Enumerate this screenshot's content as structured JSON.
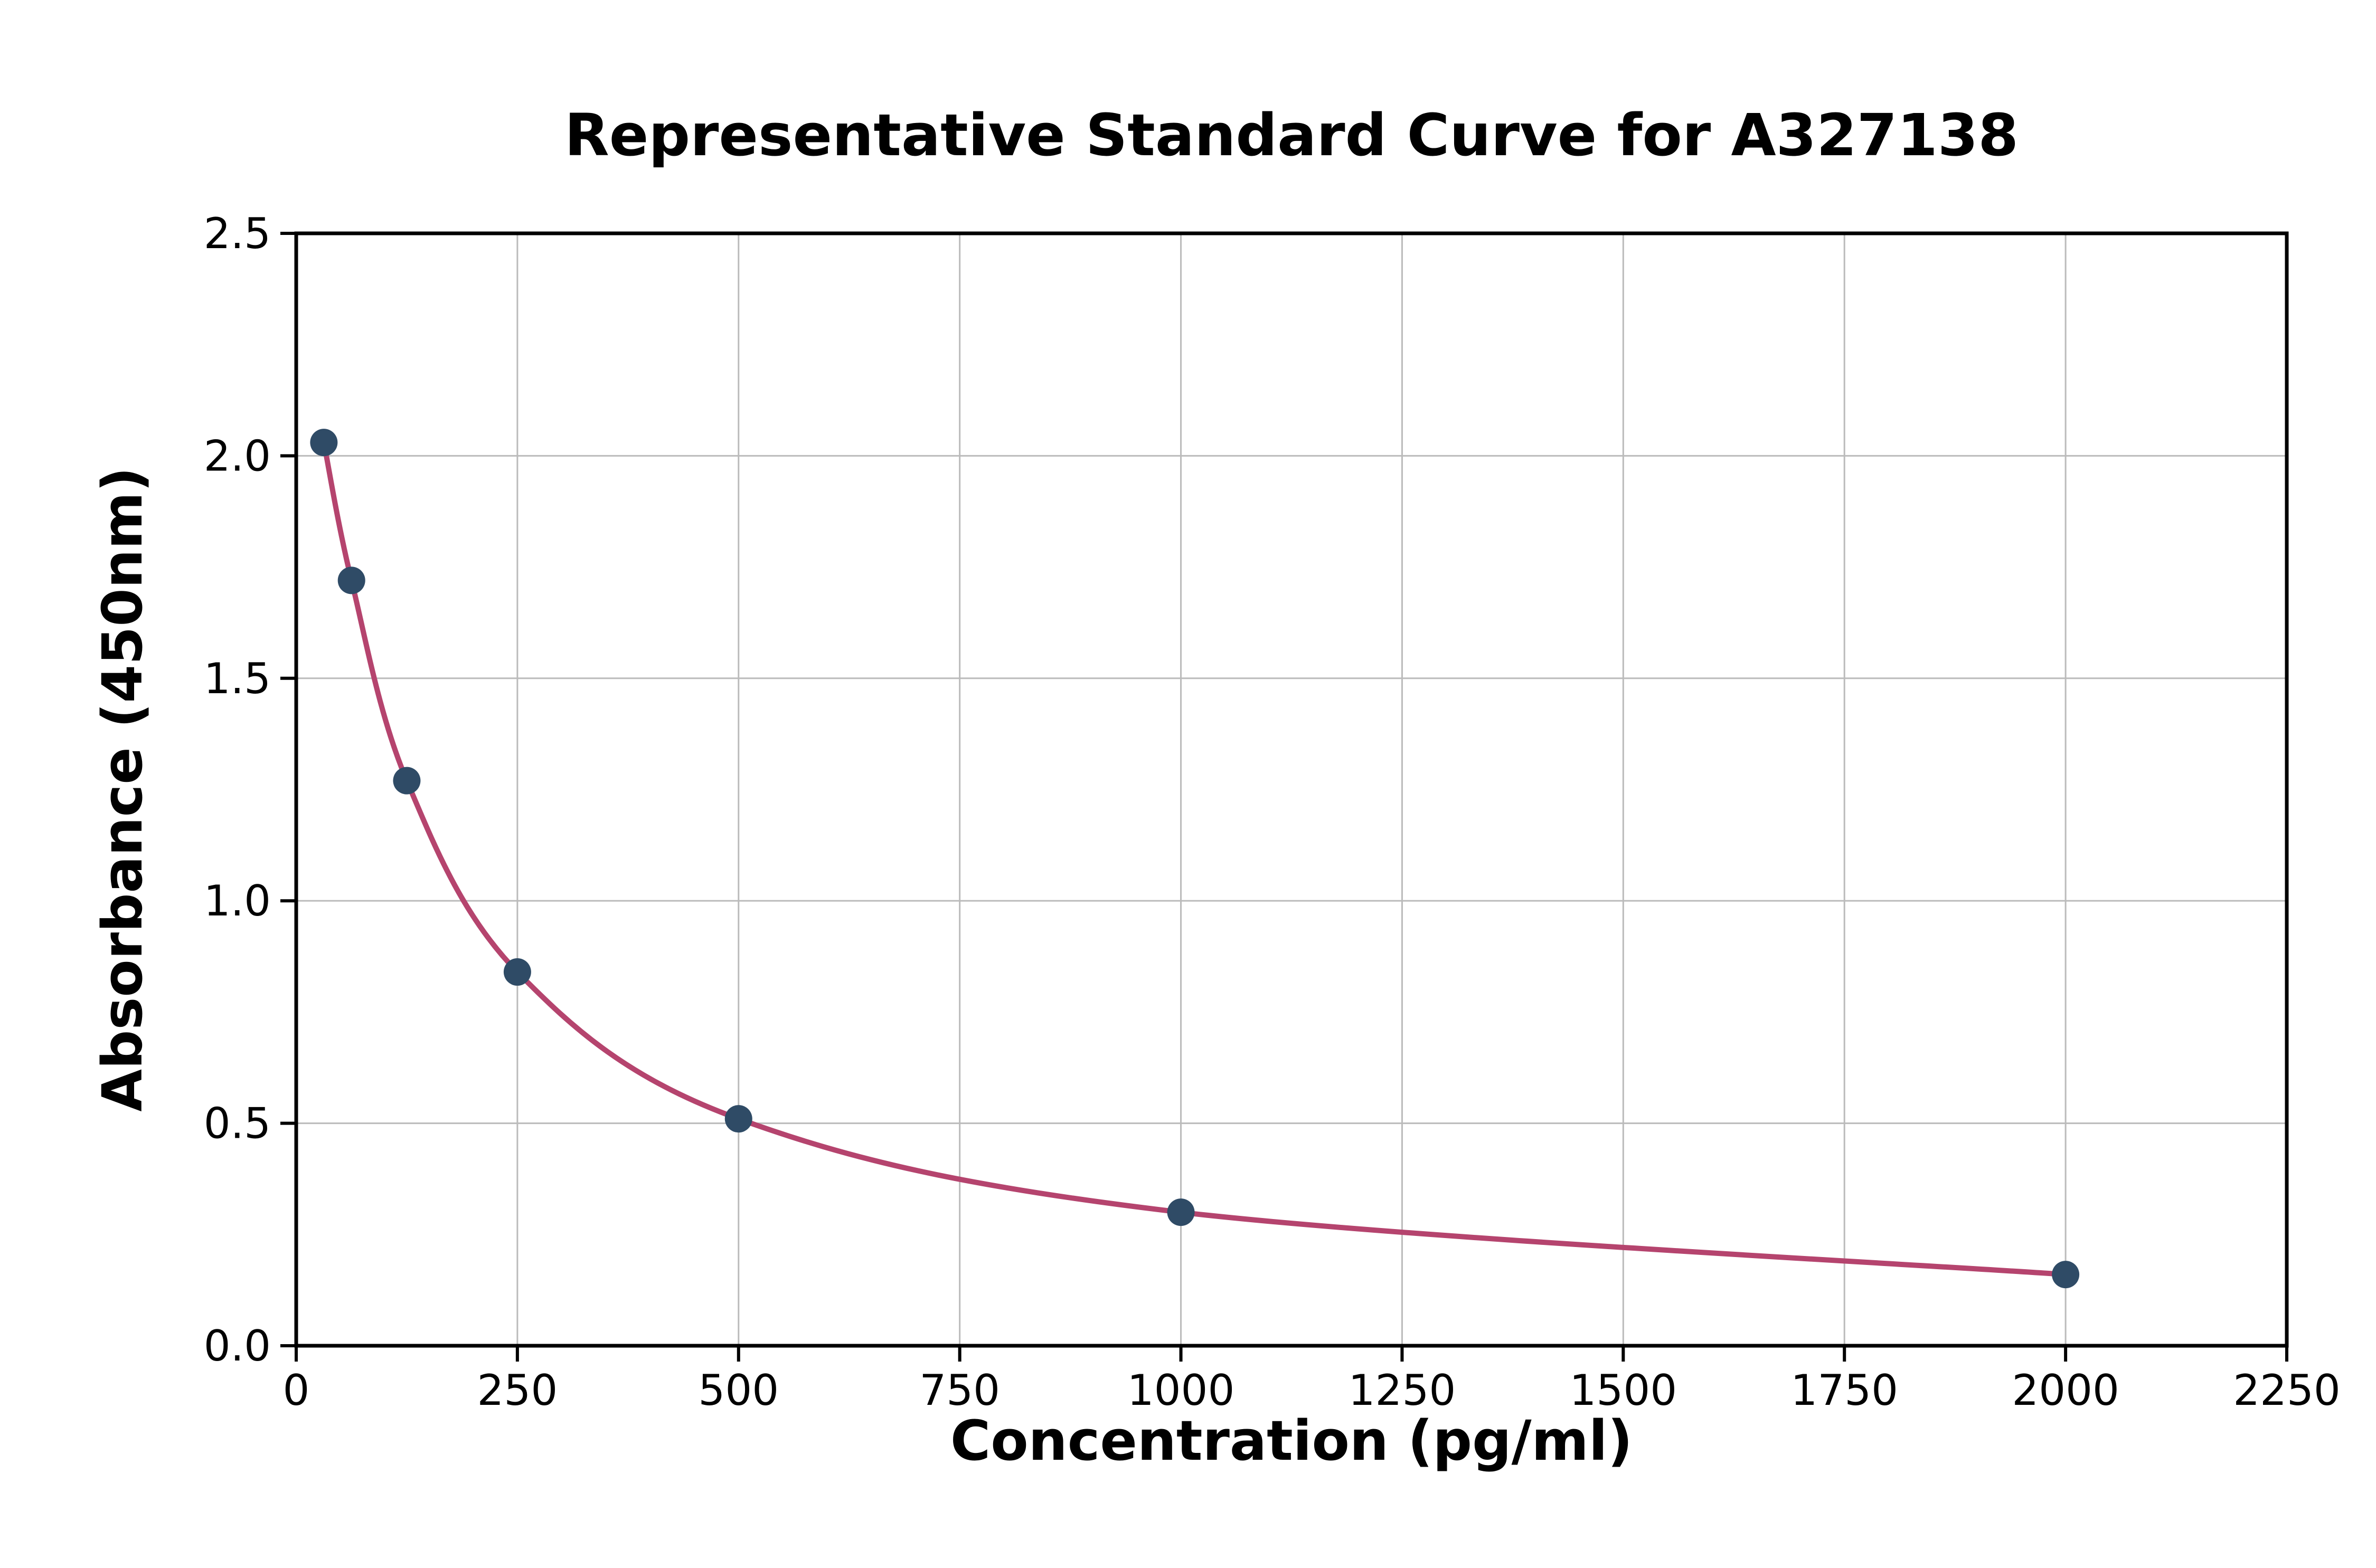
{
  "page": {
    "background": "#ffffff"
  },
  "chart_data": {
    "type": "scatter",
    "title": "Representative Standard Curve for A327138",
    "xlabel": "Concentration (pg/ml)",
    "ylabel": "Absorbance (450nm)",
    "xlim": [
      0,
      2250
    ],
    "ylim": [
      0,
      2.5
    ],
    "xtick_values": [
      0,
      250,
      500,
      750,
      1000,
      1250,
      1500,
      1750,
      2000,
      2250
    ],
    "xtick_labels": [
      "0",
      "250",
      "500",
      "750",
      "1000",
      "1250",
      "1500",
      "1750",
      "2000",
      "2250"
    ],
    "ytick_values": [
      0,
      0.5,
      1.0,
      1.5,
      2.0,
      2.5
    ],
    "ytick_labels": [
      "0.0",
      "0.5",
      "1.0",
      "1.5",
      "2.0",
      "2.5"
    ],
    "grid": true,
    "legend": "none",
    "series": [
      {
        "name": "standards",
        "type": "scatter",
        "x": [
          31.25,
          62.5,
          125,
          250,
          500,
          1000,
          2000
        ],
        "y": [
          2.03,
          1.72,
          1.27,
          0.84,
          0.51,
          0.3,
          0.16
        ],
        "color": "#2f4b66"
      },
      {
        "name": "fitted-curve",
        "type": "line",
        "description": "smooth 4PL fit through the standard points",
        "color": "#b5446e"
      }
    ],
    "colors": {
      "points": "#2f4b66",
      "curve": "#b5446e",
      "grid": "#bbbbbb",
      "axis": "#000000",
      "text": "#000000"
    }
  }
}
